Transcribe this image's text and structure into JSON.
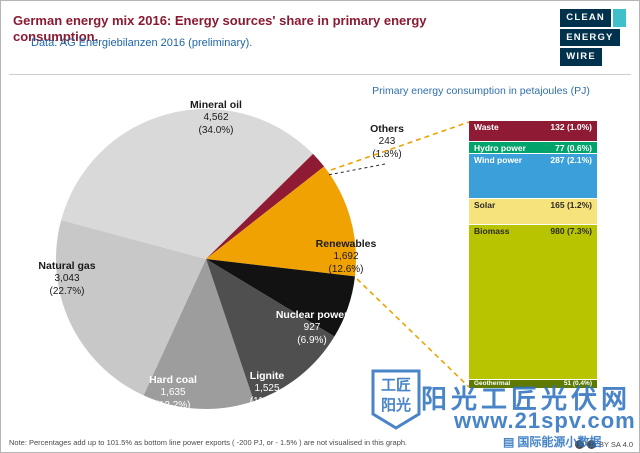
{
  "meta": {
    "title": "German energy mix 2016: Energy sources' share in primary energy consumption.",
    "subtitle": "Data: AG Energiebilanzen 2016 (preliminary).",
    "note": "Note: Percentages add up to 101.5% as bottom line power exports ( -200 PJ, or - 1.5% ) are not visualised in this graph.",
    "license": "BY SA 4.0"
  },
  "logo": {
    "lines": [
      "CLEAN",
      "ENERGY",
      "WIRE"
    ]
  },
  "colors": {
    "title_maroon": "#8a1a31",
    "subtitle_blue": "#1e66a8",
    "heading_blue": "#2f6fad",
    "connector_orange": "#eda200",
    "logo_navy": "#00314d",
    "logo_cyan": "#3fbfc9",
    "watermark_blue": "#2f74c0"
  },
  "chart_data": [
    {
      "type": "pie",
      "title": "German energy mix 2016: Energy sources' share in primary energy consumption.",
      "unit": "PJ",
      "start_angle_deg": 285,
      "slices": [
        {
          "name": "Mineral oil",
          "value": 4562,
          "value_label": "4,562",
          "pct_label": "(34.0%)",
          "color": "#d9d9d9",
          "label_color": "#1a1a1a"
        },
        {
          "name": "Others",
          "value": 243,
          "value_label": "243",
          "pct_label": "(1.8%)",
          "color": "#8e1b33",
          "label_color": "#1a1a1a"
        },
        {
          "name": "Renewables",
          "value": 1692,
          "value_label": "1,692",
          "pct_label": "(12.6%)",
          "color": "#f0a202",
          "label_color": "#1a1a1a"
        },
        {
          "name": "Nuclear power",
          "value": 927,
          "value_label": "927",
          "pct_label": "(6.9%)",
          "color": "#121212",
          "label_color": "#ffffff"
        },
        {
          "name": "Lignite",
          "value": 1525,
          "value_label": "1,525",
          "pct_label": "(11.4%)",
          "color": "#4f4f4f",
          "label_color": "#ffffff"
        },
        {
          "name": "Hard coal",
          "value": 1635,
          "value_label": "1,635",
          "pct_label": "(12.2%)",
          "color": "#9d9d9d",
          "label_color": "#ffffff"
        },
        {
          "name": "Natural gas",
          "value": 3043,
          "value_label": "3,043",
          "pct_label": "(22.7%)",
          "color": "#c8c8c8",
          "label_color": "#1a1a1a"
        }
      ]
    },
    {
      "type": "bar",
      "subtype": "stacked-column",
      "title": "Primary energy consumption in petajoules (PJ)",
      "total": 1692,
      "segments": [
        {
          "name": "Waste",
          "value": 132,
          "label": "132 (1.0%)",
          "color": "#8e1b33",
          "label_color": "#ffffff"
        },
        {
          "name": "Hydro power",
          "value": 77,
          "label": "77 (0.6%)",
          "color": "#00a36a",
          "label_color": "#ffffff"
        },
        {
          "name": "Wind power",
          "value": 287,
          "label": "287 (2.1%)",
          "color": "#3b9fd9",
          "label_color": "#ffffff"
        },
        {
          "name": "Solar",
          "value": 165,
          "label": "165 (1.2%)",
          "color": "#f6e37c",
          "label_color": "#2a2a2a"
        },
        {
          "name": "Biomass",
          "value": 980,
          "label": "980 (7.3%)",
          "color": "#b9c400",
          "label_color": "#2a2a2a"
        },
        {
          "name": "Geothermal",
          "value": 51,
          "label": "51 (0.4%)",
          "color": "#5f7a00",
          "label_color": "#ffffff"
        }
      ]
    }
  ],
  "watermark": {
    "badge_line1": "工匠",
    "badge_line2": "阳光",
    "site_name": "阳光工匠光伏网",
    "site_url": "www.21spv.com",
    "channel_icon": "▤",
    "channel": "国际能源小数据"
  }
}
